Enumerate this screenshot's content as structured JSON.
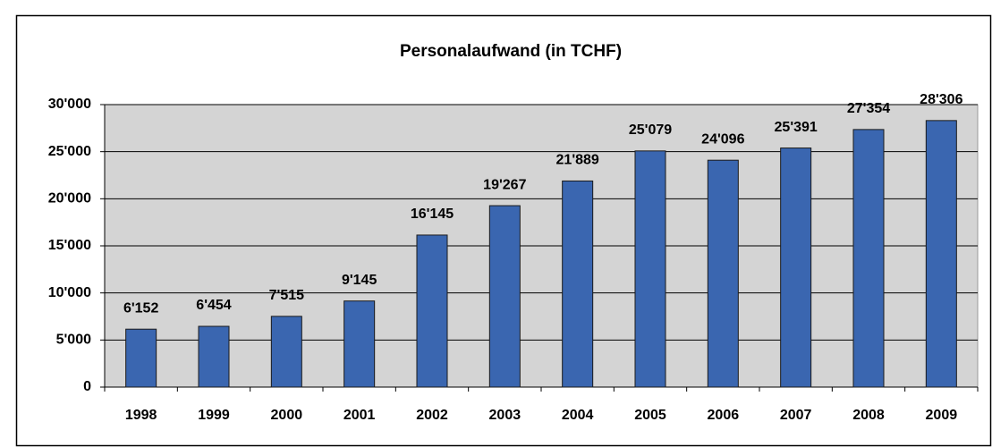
{
  "chart_data": {
    "type": "bar",
    "title": "Personalaufwand (in TCHF)",
    "categories": [
      "1998",
      "1999",
      "2000",
      "2001",
      "2002",
      "2003",
      "2004",
      "2005",
      "2006",
      "2007",
      "2008",
      "2009"
    ],
    "values": [
      6152,
      6454,
      7515,
      9145,
      16145,
      19267,
      21889,
      25079,
      24096,
      25391,
      27354,
      28306
    ],
    "value_labels": [
      "6'152",
      "6'454",
      "7'515",
      "9'145",
      "16'145",
      "19'267",
      "21'889",
      "25'079",
      "24'096",
      "25'391",
      "27'354",
      "28'306"
    ],
    "color": "#3a66b0",
    "ylim": [
      0,
      30000
    ],
    "yticks": [
      0,
      {
        "value": 5000,
        "label": "5'000"
      },
      {
        "value": 10000,
        "label": "10'000"
      },
      {
        "value": 15000,
        "label": "15'000"
      },
      {
        "value": 20000,
        "label": "20'000"
      },
      {
        "value": 25000,
        "label": "25'000"
      },
      {
        "value": 30000,
        "label": "30'000"
      }
    ],
    "grid": true
  }
}
